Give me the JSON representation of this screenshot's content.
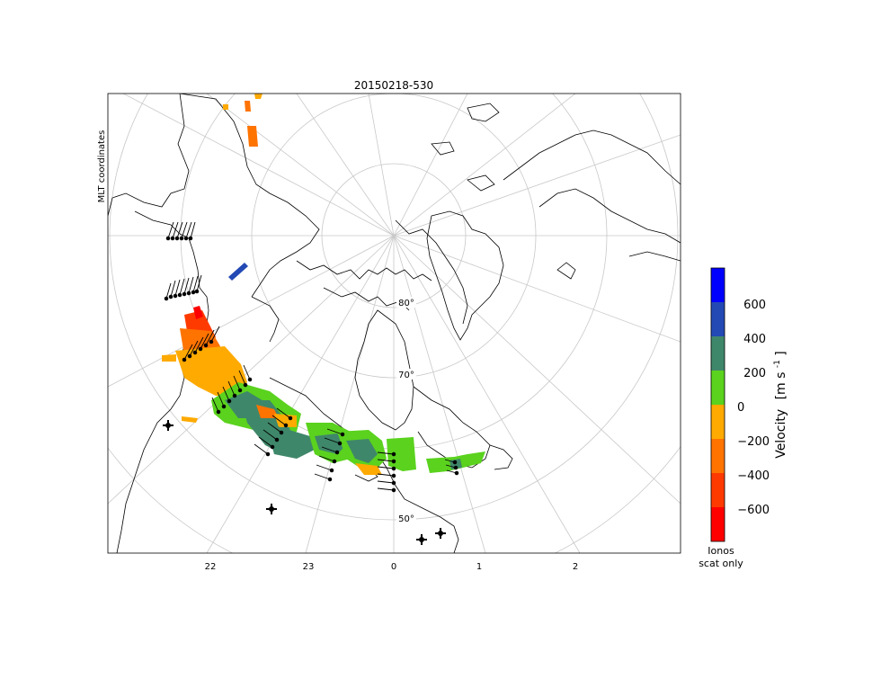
{
  "title": "20150218-530",
  "side_label": "MLT coordinates",
  "latitude_labels": [
    "80°",
    "70°",
    "50°"
  ],
  "mlt_labels": [
    "22",
    "23",
    "0",
    "1",
    "2"
  ],
  "colorbar": {
    "title": "Velocity",
    "unit": "[m s",
    "unit_exp": "-1",
    "unit_close": "]",
    "tick_labels": [
      "600",
      "400",
      "200",
      "0",
      "−200",
      "−400",
      "−600"
    ],
    "bins": [
      {
        "from": 600,
        "to": 800,
        "color": "#0000ff"
      },
      {
        "from": 400,
        "to": 600,
        "color": "#2349b4"
      },
      {
        "from": 200,
        "to": 400,
        "color": "#3f876a"
      },
      {
        "from": 0,
        "to": 200,
        "color": "#5ad21e"
      },
      {
        "from": -200,
        "to": 0,
        "color": "#ffaa00"
      },
      {
        "from": -400,
        "to": -200,
        "color": "#ff7300"
      },
      {
        "from": -600,
        "to": -400,
        "color": "#ff3a00"
      },
      {
        "from": -800,
        "to": -600,
        "color": "#ff0000"
      }
    ],
    "footer_line1": "Ionos",
    "footer_line2": "scat only"
  },
  "colors": {
    "grid": "#c8c8c8",
    "coast": "#000000",
    "vector": "#000000"
  }
}
